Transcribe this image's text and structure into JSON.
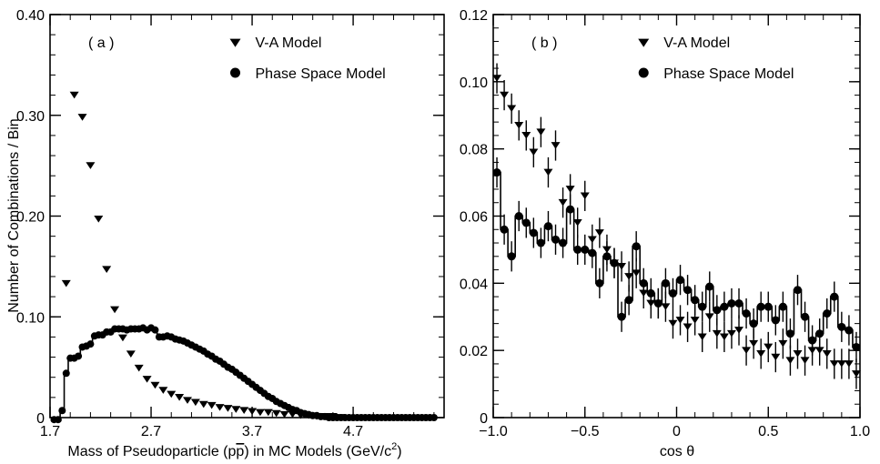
{
  "chart_data": [
    {
      "type": "scatter",
      "panel_label": "( a )",
      "xlabel_main": "Mass of Pseudoparticle (p",
      "xlabel_pbar": "p",
      "xlabel_tail": ") in MC Models (GeV/c",
      "xlabel_sup": "2",
      "xlabel_close": ")",
      "ylabel": "Number of Combinations / Bin",
      "xlim": [
        1.7,
        5.6
      ],
      "ylim": [
        0,
        0.4
      ],
      "x_ticks": [
        "1.7",
        "2.7",
        "3.7",
        "4.7"
      ],
      "x_tick_values": [
        1.7,
        2.7,
        3.7,
        4.7
      ],
      "y_ticks": [
        "0",
        "0.10",
        "0.20",
        "0.30",
        "0.40"
      ],
      "y_tick_values": [
        0,
        0.1,
        0.2,
        0.3,
        0.4
      ],
      "legend_position": "top-right",
      "series": [
        {
          "name": "V-A Model",
          "marker": "triangle-down",
          "x": [
            1.86,
            1.94,
            2.02,
            2.1,
            2.18,
            2.26,
            2.34,
            2.42,
            2.5,
            2.58,
            2.66,
            2.74,
            2.82,
            2.9,
            2.98,
            3.06,
            3.14,
            3.22,
            3.3,
            3.38,
            3.46,
            3.54,
            3.62,
            3.7,
            3.78,
            3.86,
            3.94,
            4.02,
            4.1,
            4.18,
            4.26,
            4.34,
            4.42,
            4.5,
            4.58
          ],
          "y": [
            0.133,
            0.32,
            0.298,
            0.25,
            0.197,
            0.147,
            0.107,
            0.079,
            0.063,
            0.049,
            0.038,
            0.032,
            0.027,
            0.023,
            0.02,
            0.017,
            0.015,
            0.013,
            0.012,
            0.01,
            0.009,
            0.008,
            0.007,
            0.006,
            0.005,
            0.005,
            0.004,
            0.003,
            0.003,
            0.002,
            0.002,
            0.001,
            0.001,
            0.001,
            0.0
          ]
        },
        {
          "name": "Phase Space Model",
          "marker": "circle",
          "x": [
            1.74,
            1.78,
            1.82,
            1.86,
            1.9,
            1.94,
            1.98,
            2.02,
            2.06,
            2.1,
            2.14,
            2.18,
            2.22,
            2.26,
            2.3,
            2.34,
            2.38,
            2.42,
            2.46,
            2.5,
            2.54,
            2.58,
            2.62,
            2.66,
            2.7,
            2.74,
            2.78,
            2.82,
            2.86,
            2.9,
            2.94,
            2.98,
            3.02,
            3.06,
            3.1,
            3.14,
            3.18,
            3.22,
            3.26,
            3.3,
            3.34,
            3.38,
            3.42,
            3.46,
            3.5,
            3.54,
            3.58,
            3.62,
            3.66,
            3.7,
            3.74,
            3.78,
            3.82,
            3.86,
            3.9,
            3.94,
            3.98,
            4.02,
            4.06,
            4.1,
            4.14,
            4.18,
            4.22,
            4.26,
            4.3,
            4.34,
            4.38,
            4.42,
            4.46,
            4.5,
            4.54,
            4.58,
            4.62,
            4.66,
            4.7,
            4.74,
            4.78,
            4.82,
            4.86,
            4.9,
            4.94,
            4.98,
            5.02,
            5.06,
            5.1,
            5.14,
            5.18,
            5.22,
            5.26,
            5.3,
            5.34,
            5.38,
            5.42,
            5.46,
            5.5
          ],
          "y": [
            -0.002,
            -0.002,
            0.007,
            0.044,
            0.059,
            0.059,
            0.061,
            0.07,
            0.071,
            0.073,
            0.081,
            0.082,
            0.082,
            0.085,
            0.085,
            0.088,
            0.088,
            0.088,
            0.087,
            0.088,
            0.088,
            0.088,
            0.089,
            0.087,
            0.089,
            0.087,
            0.08,
            0.08,
            0.081,
            0.08,
            0.078,
            0.077,
            0.076,
            0.074,
            0.072,
            0.07,
            0.068,
            0.066,
            0.063,
            0.061,
            0.058,
            0.056,
            0.053,
            0.05,
            0.048,
            0.045,
            0.042,
            0.039,
            0.036,
            0.033,
            0.03,
            0.027,
            0.024,
            0.021,
            0.019,
            0.016,
            0.014,
            0.012,
            0.01,
            0.008,
            0.007,
            0.005,
            0.004,
            0.003,
            0.002,
            0.002,
            0.001,
            0.001,
            0.0,
            0.0,
            0.0,
            0.0,
            0.0,
            0.0,
            0.0,
            0.0,
            0.0,
            0.0,
            0.0,
            0.0,
            0.0,
            0.0,
            0.0,
            0.0,
            0.0,
            0.0,
            0.0,
            0.0,
            0.0,
            0.0,
            0.0,
            0.0,
            0.0,
            0.0,
            0.0
          ]
        }
      ]
    },
    {
      "type": "scatter",
      "panel_label": "( b )",
      "xlabel": "cos θ",
      "ylabel": "",
      "xlim": [
        -1.0,
        1.0
      ],
      "ylim": [
        0,
        0.12
      ],
      "x_ticks": [
        "−1.0",
        "−0.5",
        "0",
        "0.5",
        "1.0"
      ],
      "x_tick_values": [
        -1.0,
        -0.5,
        0,
        0.5,
        1.0
      ],
      "y_ticks": [
        "0",
        "0.02",
        "0.04",
        "0.06",
        "0.08",
        "0.10",
        "0.12"
      ],
      "y_tick_values": [
        0,
        0.02,
        0.04,
        0.06,
        0.08,
        0.1,
        0.12
      ],
      "legend_position": "top-right",
      "series": [
        {
          "name": "V-A Model",
          "marker": "triangle-down",
          "x": [
            -0.98,
            -0.94,
            -0.9,
            -0.86,
            -0.82,
            -0.78,
            -0.74,
            -0.7,
            -0.66,
            -0.62,
            -0.58,
            -0.54,
            -0.5,
            -0.46,
            -0.42,
            -0.38,
            -0.34,
            -0.3,
            -0.26,
            -0.22,
            -0.18,
            -0.14,
            -0.1,
            -0.06,
            -0.02,
            0.02,
            0.06,
            0.1,
            0.14,
            0.18,
            0.22,
            0.26,
            0.3,
            0.34,
            0.38,
            0.42,
            0.46,
            0.5,
            0.54,
            0.58,
            0.62,
            0.66,
            0.7,
            0.74,
            0.78,
            0.82,
            0.86,
            0.9,
            0.94,
            0.98
          ],
          "y": [
            0.101,
            0.096,
            0.092,
            0.087,
            0.084,
            0.079,
            0.085,
            0.073,
            0.081,
            0.064,
            0.068,
            0.058,
            0.066,
            0.053,
            0.055,
            0.05,
            0.046,
            0.045,
            0.042,
            0.043,
            0.037,
            0.034,
            0.034,
            0.033,
            0.028,
            0.029,
            0.027,
            0.029,
            0.024,
            0.03,
            0.025,
            0.024,
            0.025,
            0.026,
            0.02,
            0.022,
            0.019,
            0.021,
            0.018,
            0.022,
            0.017,
            0.019,
            0.017,
            0.02,
            0.02,
            0.019,
            0.016,
            0.016,
            0.016,
            0.013
          ]
        },
        {
          "name": "Phase Space Model",
          "marker": "circle",
          "x": [
            -0.98,
            -0.94,
            -0.9,
            -0.86,
            -0.82,
            -0.78,
            -0.74,
            -0.7,
            -0.66,
            -0.62,
            -0.58,
            -0.54,
            -0.5,
            -0.46,
            -0.42,
            -0.38,
            -0.34,
            -0.3,
            -0.26,
            -0.22,
            -0.18,
            -0.14,
            -0.1,
            -0.06,
            -0.02,
            0.02,
            0.06,
            0.1,
            0.14,
            0.18,
            0.22,
            0.26,
            0.3,
            0.34,
            0.38,
            0.42,
            0.46,
            0.5,
            0.54,
            0.58,
            0.62,
            0.66,
            0.7,
            0.74,
            0.78,
            0.82,
            0.86,
            0.9,
            0.94,
            0.98
          ],
          "y": [
            0.073,
            0.056,
            0.048,
            0.06,
            0.058,
            0.055,
            0.052,
            0.057,
            0.053,
            0.052,
            0.062,
            0.05,
            0.05,
            0.049,
            0.04,
            0.048,
            0.046,
            0.03,
            0.035,
            0.051,
            0.04,
            0.037,
            0.034,
            0.04,
            0.037,
            0.041,
            0.038,
            0.035,
            0.033,
            0.039,
            0.032,
            0.033,
            0.034,
            0.034,
            0.031,
            0.028,
            0.033,
            0.033,
            0.029,
            0.033,
            0.025,
            0.038,
            0.03,
            0.023,
            0.025,
            0.031,
            0.036,
            0.027,
            0.026,
            0.021
          ]
        }
      ]
    }
  ]
}
